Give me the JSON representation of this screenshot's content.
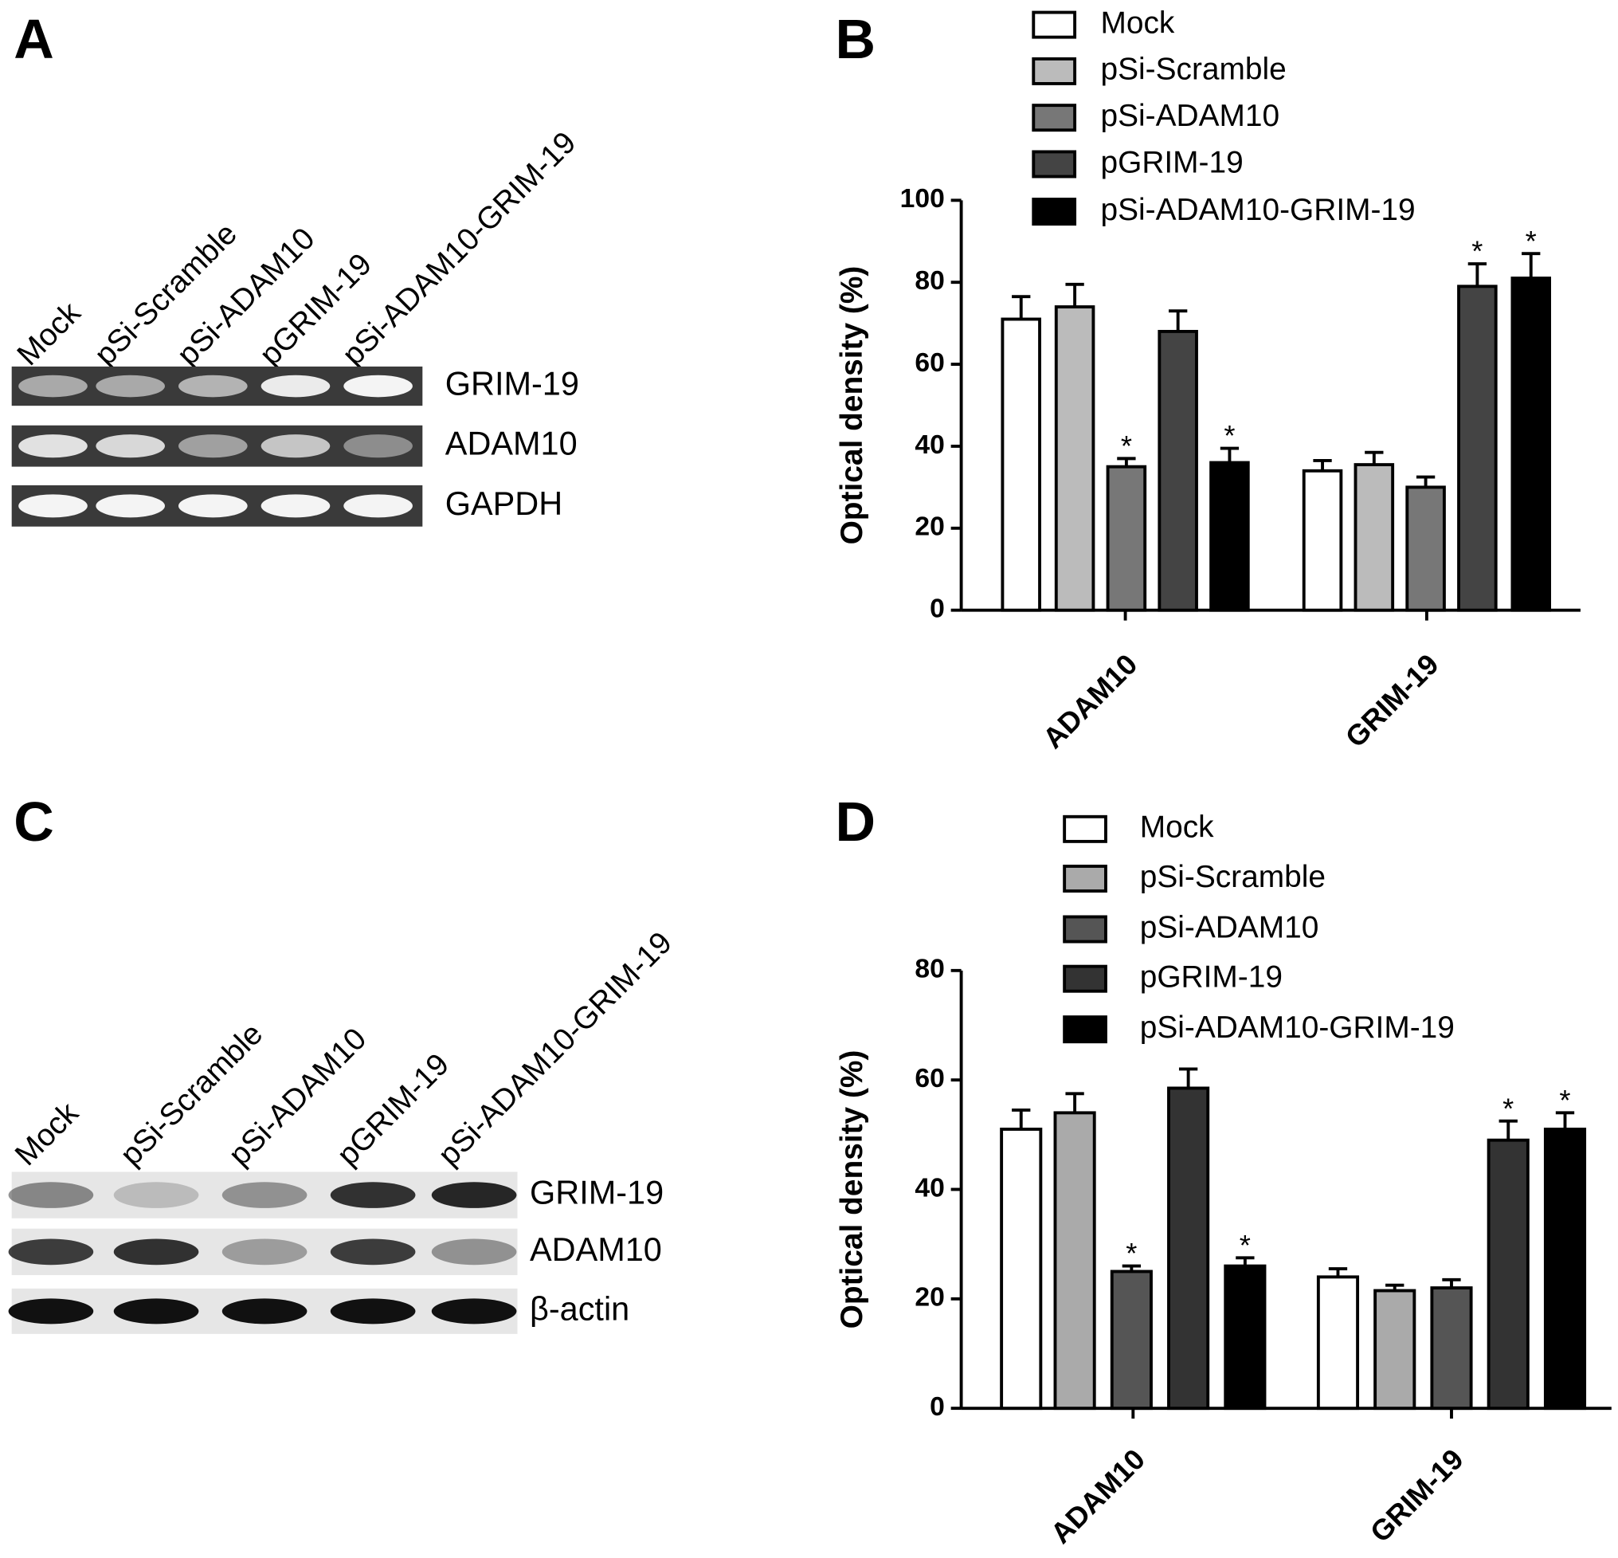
{
  "panel_labels": [
    "A",
    "B",
    "C",
    "D"
  ],
  "gels": [
    {
      "lanes": [
        "Mock",
        "pSi-Scramble",
        "pSi-ADAM10",
        "pGRIM-19",
        "pSi-ADAM10-GRIM-19"
      ],
      "bands": [
        "GRIM-19",
        "ADAM10",
        "GAPDH"
      ]
    },
    {
      "lanes": [
        "Mock",
        "pSi-Scramble",
        "pSi-ADAM10",
        "pGRIM-19",
        "pSi-ADAM10-GRIM-19"
      ],
      "bands": [
        "GRIM-19",
        "ADAM10",
        "β-actin"
      ]
    }
  ],
  "chart_data": [
    {
      "type": "bar",
      "ylabel": "Optical density (%)",
      "categories": [
        "ADAM10",
        "GRIM-19"
      ],
      "ylim": [
        0,
        100
      ],
      "yticks": [
        0,
        20,
        40,
        60,
        80,
        100
      ],
      "series": [
        {
          "name": "Mock",
          "color": "#ffffff",
          "values": [
            71,
            34
          ],
          "errors": [
            5.5,
            2.5
          ],
          "significance": [
            null,
            null
          ]
        },
        {
          "name": "pSi-Scramble",
          "color": "#bbbbbb",
          "values": [
            74,
            35.5
          ],
          "errors": [
            5.5,
            3
          ],
          "significance": [
            null,
            null
          ]
        },
        {
          "name": "pSi-ADAM10",
          "color": "#777777",
          "values": [
            35,
            30
          ],
          "errors": [
            2,
            2.5
          ],
          "significance": [
            "*",
            null
          ]
        },
        {
          "name": "pGRIM-19",
          "color": "#444444",
          "values": [
            68,
            79
          ],
          "errors": [
            5,
            5.5
          ],
          "significance": [
            null,
            "*"
          ]
        },
        {
          "name": "pSi-ADAM10-GRIM-19",
          "color": "#000000",
          "values": [
            36,
            81
          ],
          "errors": [
            3.5,
            6
          ],
          "significance": [
            "*",
            "*"
          ]
        }
      ]
    },
    {
      "type": "bar",
      "ylabel": "Optical density (%)",
      "categories": [
        "ADAM10",
        "GRIM-19"
      ],
      "ylim": [
        0,
        80
      ],
      "yticks": [
        0,
        20,
        40,
        60,
        80
      ],
      "series": [
        {
          "name": "Mock",
          "color": "#ffffff",
          "values": [
            51,
            24
          ],
          "errors": [
            3.5,
            1.5
          ],
          "significance": [
            null,
            null
          ]
        },
        {
          "name": "pSi-Scramble",
          "color": "#aaaaaa",
          "values": [
            54,
            21.5
          ],
          "errors": [
            3.5,
            1
          ],
          "significance": [
            null,
            null
          ]
        },
        {
          "name": "pSi-ADAM10",
          "color": "#555555",
          "values": [
            25,
            22
          ],
          "errors": [
            1,
            1.5
          ],
          "significance": [
            "*",
            null
          ]
        },
        {
          "name": "pGRIM-19",
          "color": "#333333",
          "values": [
            58.5,
            49
          ],
          "errors": [
            3.5,
            3.5
          ],
          "significance": [
            null,
            "*"
          ]
        },
        {
          "name": "pSi-ADAM10-GRIM-19",
          "color": "#000000",
          "values": [
            26,
            51
          ],
          "errors": [
            1.5,
            3
          ],
          "significance": [
            "*",
            "*"
          ]
        }
      ]
    }
  ]
}
